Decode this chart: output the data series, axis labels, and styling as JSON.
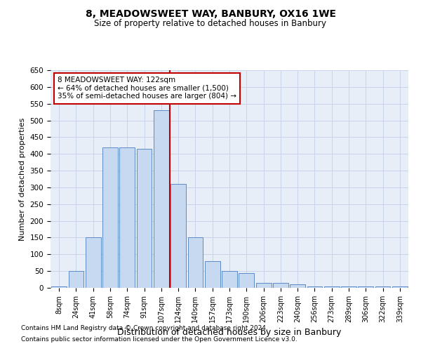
{
  "title1": "8, MEADOWSWEET WAY, BANBURY, OX16 1WE",
  "title2": "Size of property relative to detached houses in Banbury",
  "xlabel": "Distribution of detached houses by size in Banbury",
  "ylabel": "Number of detached properties",
  "categories": [
    "8sqm",
    "24sqm",
    "41sqm",
    "58sqm",
    "74sqm",
    "91sqm",
    "107sqm",
    "124sqm",
    "140sqm",
    "157sqm",
    "173sqm",
    "190sqm",
    "206sqm",
    "223sqm",
    "240sqm",
    "256sqm",
    "273sqm",
    "289sqm",
    "306sqm",
    "322sqm",
    "339sqm"
  ],
  "values": [
    5,
    50,
    150,
    420,
    420,
    415,
    530,
    310,
    150,
    80,
    50,
    45,
    15,
    15,
    10,
    5,
    5,
    5,
    5,
    5,
    5
  ],
  "bar_color": "#c6d9f0",
  "bar_edge_color": "#5b8bc9",
  "property_line_index": 7,
  "property_line_color": "#c00000",
  "ylim": [
    0,
    650
  ],
  "yticks": [
    0,
    50,
    100,
    150,
    200,
    250,
    300,
    350,
    400,
    450,
    500,
    550,
    600,
    650
  ],
  "annotation_text": "8 MEADOWSWEET WAY: 122sqm\n← 64% of detached houses are smaller (1,500)\n35% of semi-detached houses are larger (804) →",
  "annotation_box_color": "#ffffff",
  "annotation_box_edge": "#c00000",
  "grid_color": "#c8d4e8",
  "background_color": "#e8eef8",
  "footnote1": "Contains HM Land Registry data © Crown copyright and database right 2024.",
  "footnote2": "Contains public sector information licensed under the Open Government Licence v3.0."
}
